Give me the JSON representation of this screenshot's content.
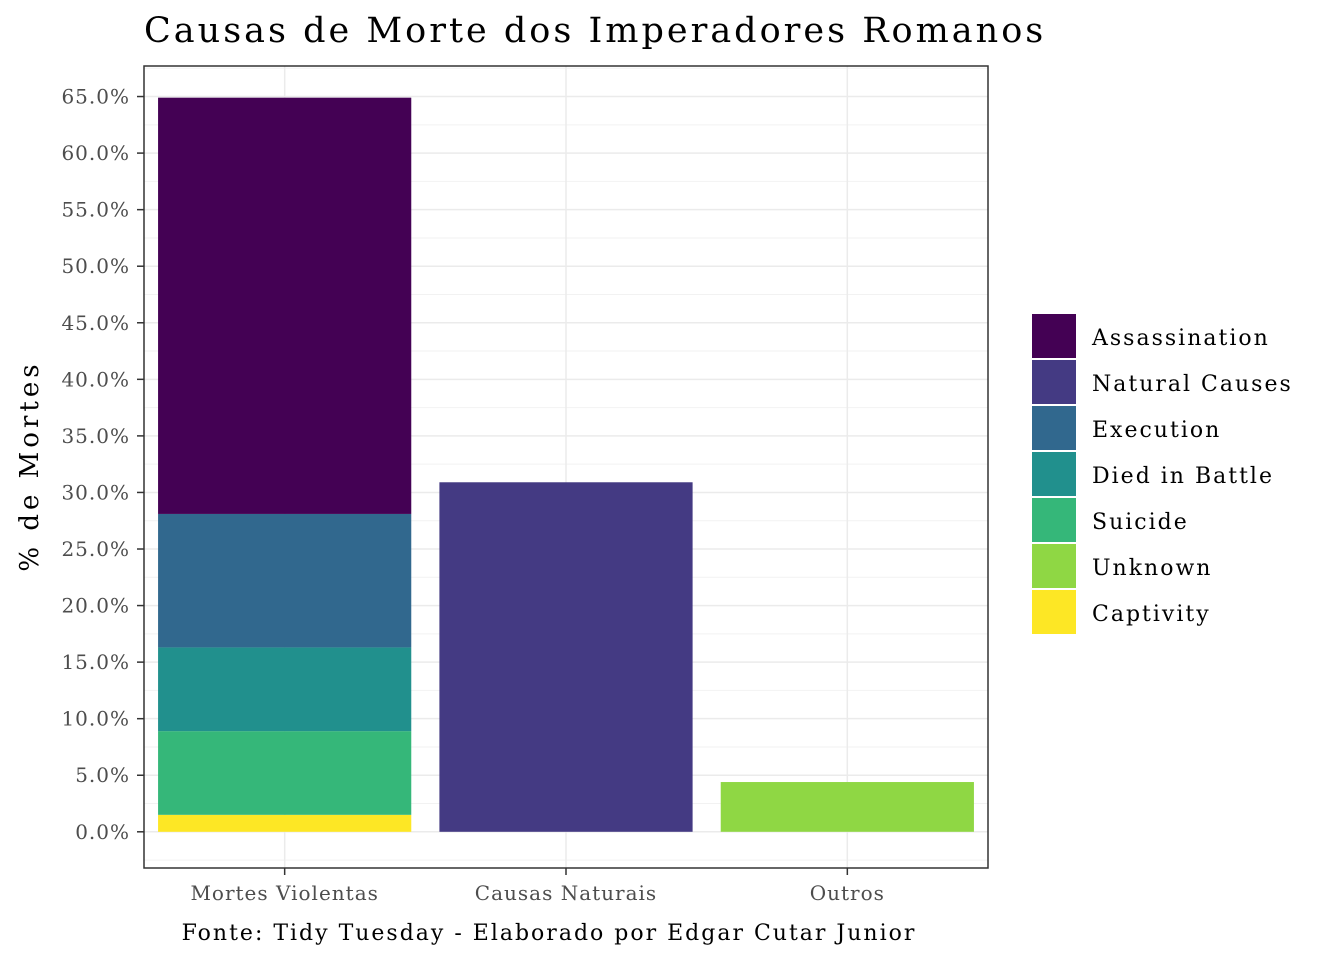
{
  "chart_data": {
    "type": "bar",
    "stacked": true,
    "title": "Causas de Morte dos Imperadores Romanos",
    "xlabel": "Fonte: Tidy Tuesday - Elaborado por Edgar Cutar Junior",
    "ylabel": "% de Mortes",
    "categories": [
      "Mortes Violentas",
      "Causas Naturais",
      "Outros"
    ],
    "ylim": [
      -3.2,
      67.7
    ],
    "y_ticks": [
      0,
      5,
      10,
      15,
      20,
      25,
      30,
      35,
      40,
      45,
      50,
      55,
      60,
      65
    ],
    "y_tick_labels": [
      "0.0%",
      "5.0%",
      "10.0%",
      "15.0%",
      "20.0%",
      "25.0%",
      "30.0%",
      "35.0%",
      "40.0%",
      "45.0%",
      "50.0%",
      "55.0%",
      "60.0%",
      "65.0%"
    ],
    "series": [
      {
        "name": "Assassination",
        "color": "#440154",
        "values": [
          36.8,
          0,
          0
        ]
      },
      {
        "name": "Natural Causes",
        "color": "#443A83",
        "values": [
          0,
          30.9,
          0
        ]
      },
      {
        "name": "Execution",
        "color": "#31688E",
        "values": [
          11.8,
          0,
          0
        ]
      },
      {
        "name": "Died in Battle",
        "color": "#21908D",
        "values": [
          7.4,
          0,
          0
        ]
      },
      {
        "name": "Suicide",
        "color": "#35B779",
        "values": [
          7.4,
          0,
          0
        ]
      },
      {
        "name": "Unknown",
        "color": "#8FD744",
        "values": [
          0,
          0,
          4.4
        ]
      },
      {
        "name": "Captivity",
        "color": "#FDE725",
        "values": [
          1.5,
          0,
          0
        ]
      }
    ],
    "stack_order_bottom_to_top": [
      "Captivity",
      "Unknown",
      "Suicide",
      "Died in Battle",
      "Execution",
      "Natural Causes",
      "Assassination"
    ],
    "legend_position": "right",
    "grid": true
  }
}
